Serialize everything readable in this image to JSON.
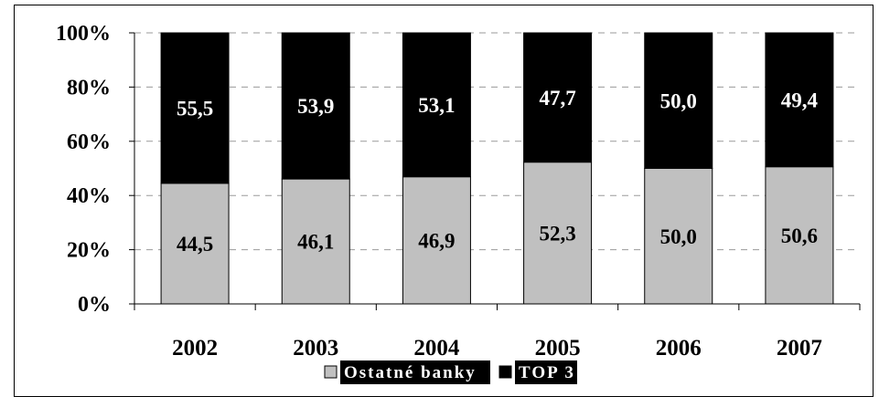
{
  "chart_data": {
    "type": "bar",
    "stacked": true,
    "percent": true,
    "categories": [
      "2002",
      "2003",
      "2004",
      "2005",
      "2006",
      "2007"
    ],
    "series": [
      {
        "name": "Ostatné banky",
        "color": "#c0c0c0",
        "label_color": "#000000",
        "values": [
          44.5,
          46.1,
          46.9,
          52.3,
          50.0,
          50.6
        ],
        "labels": [
          "44,5",
          "46,1",
          "46,9",
          "52,3",
          "50,0",
          "50,6"
        ]
      },
      {
        "name": "TOP 3",
        "color": "#000000",
        "label_color": "#ffffff",
        "values": [
          55.5,
          53.9,
          53.1,
          47.7,
          50.0,
          49.4
        ],
        "labels": [
          "55,5",
          "53,9",
          "53,1",
          "47,7",
          "50,0",
          "49,4"
        ]
      }
    ],
    "y_ticks": [
      "0%",
      "20%",
      "40%",
      "60%",
      "80%",
      "100%"
    ],
    "ylim": [
      0,
      100
    ],
    "grid": "dashed horizontal",
    "legend": "bottom-center"
  }
}
